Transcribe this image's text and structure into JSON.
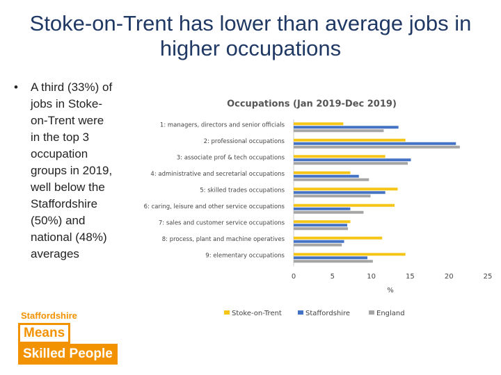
{
  "slide": {
    "title": "Stoke-on-Trent has lower than average jobs in higher occupations",
    "bullet": "A third (33%) of jobs in Stoke-on-Trent were in the top 3 occupation groups in 2019, well below the Staffordshire (50%) and national (48%) averages",
    "logo": {
      "line1": "Staffordshire",
      "line2": "Means",
      "line3": "Skilled People"
    }
  },
  "chart_data": {
    "type": "hbar",
    "title": "Occupations (Jan 2019-Dec 2019)",
    "x_label": "%",
    "categories": [
      "1: managers, directors and senior officials",
      "2: professional occupations",
      "3: associate prof & tech occupations",
      "4: administrative and secretarial occupations",
      "5: skilled trades occupations",
      "6: caring, leisure and other service occupations",
      "7: sales and customer service occupations",
      "8: process, plant and machine operatives",
      "9: elementary occupations"
    ],
    "series": [
      {
        "name": "Stoke-on-Trent",
        "color": "#f5c518",
        "values": [
          6.4,
          14.4,
          11.8,
          7.3,
          13.4,
          13.0,
          7.3,
          11.4,
          14.4
        ]
      },
      {
        "name": "Staffordshire",
        "color": "#4472c4",
        "values": [
          13.5,
          20.9,
          15.1,
          8.4,
          11.8,
          7.3,
          6.9,
          6.5,
          9.5
        ]
      },
      {
        "name": "England",
        "color": "#a5a5a5",
        "values": [
          11.6,
          21.4,
          14.7,
          9.7,
          9.9,
          9.0,
          7.0,
          6.2,
          10.2
        ]
      }
    ],
    "xlim": [
      0,
      25
    ],
    "xticks": [
      0,
      5,
      10,
      15,
      20,
      25
    ],
    "grid": false
  }
}
